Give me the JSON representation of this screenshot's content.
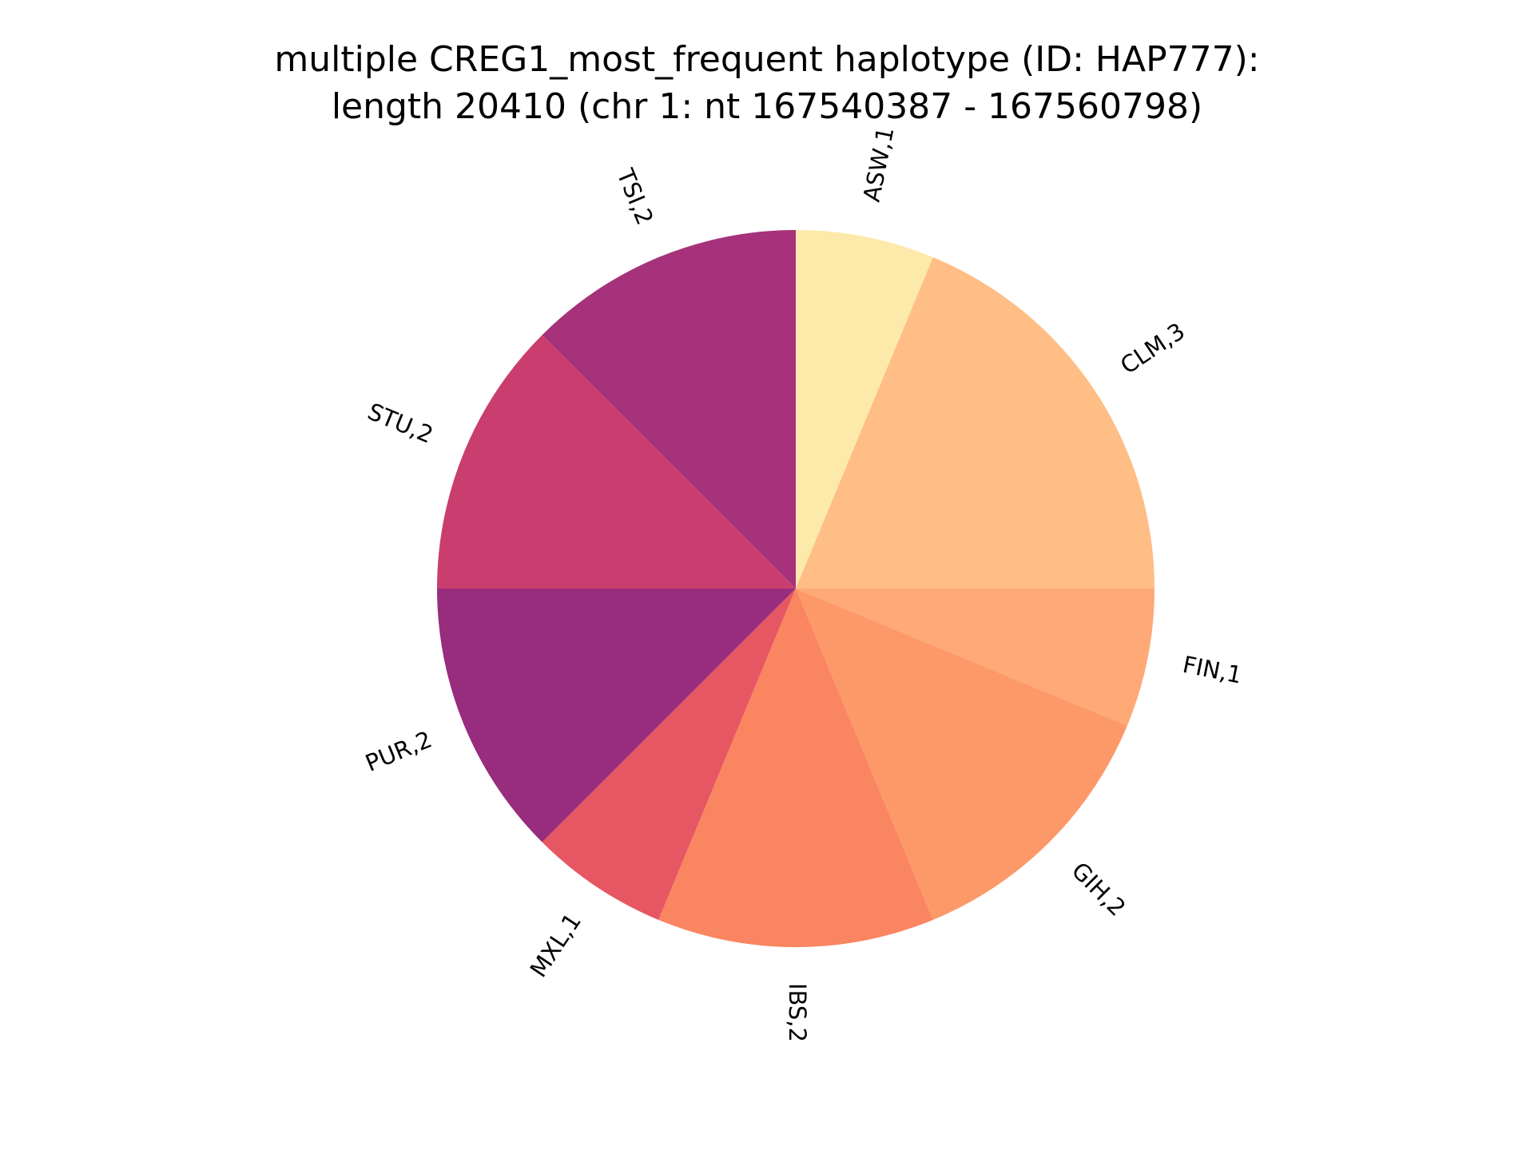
{
  "chart_data": {
    "type": "pie",
    "title": [
      "multiple CREG1_most_frequent haplotype (ID: HAP777):",
      "length 20410 (chr 1: nt 167540387 - 167560798)"
    ],
    "start_angle_deg": 90,
    "direction": "clockwise",
    "rotate_labels": true,
    "slices": [
      {
        "label": "ASW,1",
        "value": 1,
        "color": "#fde9a9"
      },
      {
        "label": "CLM,3",
        "value": 3,
        "color": "#febe85"
      },
      {
        "label": "FIN,1",
        "value": 1,
        "color": "#fea976"
      },
      {
        "label": "GIH,2",
        "value": 2,
        "color": "#fd9969"
      },
      {
        "label": "IBS,2",
        "value": 2,
        "color": "#fa8561"
      },
      {
        "label": "MXL,1",
        "value": 1,
        "color": "#e75763"
      },
      {
        "label": "PUR,2",
        "value": 2,
        "color": "#982c7d"
      },
      {
        "label": "STU,2",
        "value": 2,
        "color": "#c93e6e"
      },
      {
        "label": "TSI,2",
        "value": 2,
        "color": "#a6327b"
      }
    ]
  }
}
